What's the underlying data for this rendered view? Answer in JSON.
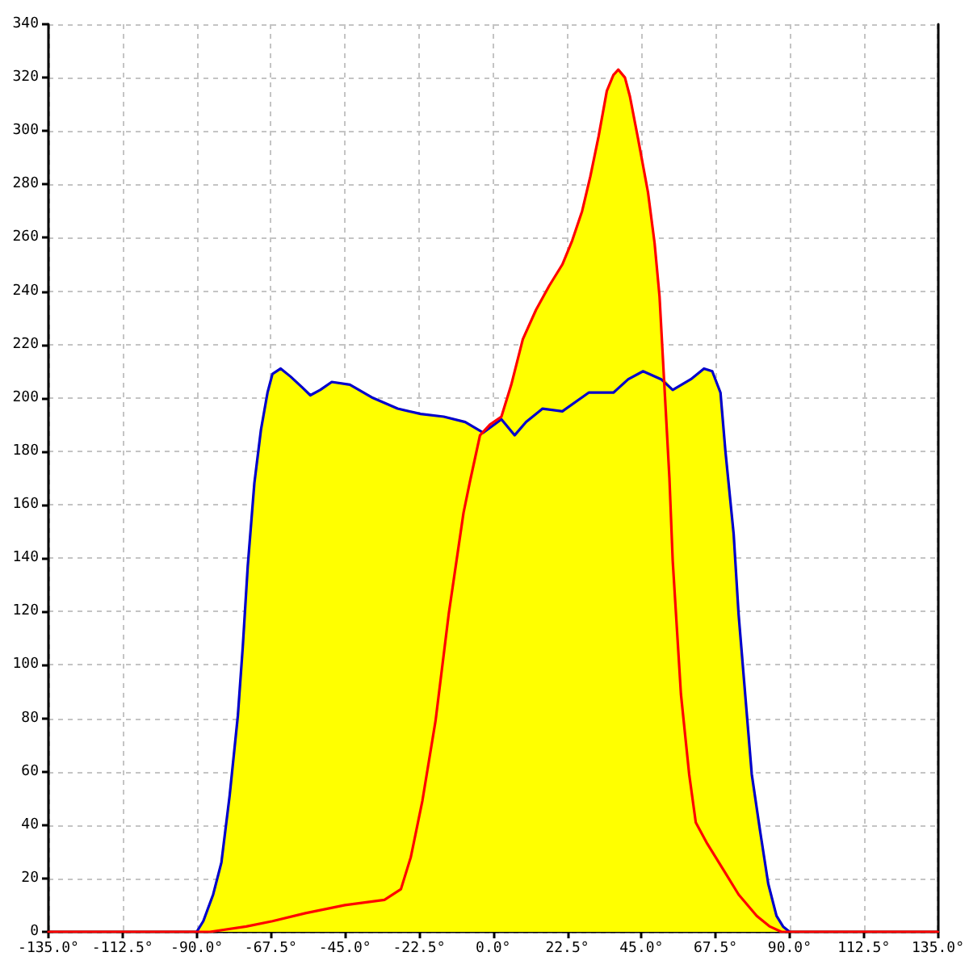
{
  "chart_data": {
    "type": "area",
    "grid": true,
    "marker": "none",
    "xlim": [
      -135,
      135
    ],
    "xticks": [
      {
        "value": -135,
        "label": "-135.0°"
      },
      {
        "value": -112.5,
        "label": "-112.5°"
      },
      {
        "value": -90,
        "label": "-90.0°"
      },
      {
        "value": -67.5,
        "label": "-67.5°"
      },
      {
        "value": -45,
        "label": "-45.0°"
      },
      {
        "value": -22.5,
        "label": "-22.5°"
      },
      {
        "value": 0,
        "label": "0.0°"
      },
      {
        "value": 22.5,
        "label": "22.5°"
      },
      {
        "value": 45,
        "label": "45.0°"
      },
      {
        "value": 67.5,
        "label": "67.5°"
      },
      {
        "value": 90,
        "label": "90.0°"
      },
      {
        "value": 112.5,
        "label": "112.5°"
      },
      {
        "value": 135,
        "label": "135.0°"
      }
    ],
    "ylim": [
      0,
      340
    ],
    "yticks": [
      0,
      20,
      40,
      60,
      80,
      100,
      120,
      140,
      160,
      180,
      200,
      220,
      240,
      260,
      280,
      300,
      320,
      340
    ],
    "series": [
      {
        "color": "#ffff00",
        "x": [
          -90,
          -88,
          -85,
          -82.5,
          -80,
          -77.5,
          -76,
          -74.5,
          -72.5,
          -70.5,
          -68.5,
          -67,
          -64.5,
          -61.5,
          -58,
          -55.5,
          -52.5,
          -49,
          -43.5,
          -36.5,
          -29,
          -22,
          -15,
          -8.5,
          -3,
          -1,
          2.5,
          5.5,
          9,
          13,
          17,
          21,
          24,
          27,
          29.5,
          32,
          34.5,
          36.5,
          38,
          40,
          41.5,
          44,
          47,
          49,
          50.5,
          51.8,
          54.5,
          60,
          64,
          66.5,
          69,
          70.5,
          73,
          74.5,
          76.5,
          78.5,
          81,
          83.5,
          86,
          88,
          90
        ],
        "values": [
          0,
          4,
          14,
          26,
          51,
          81,
          107,
          137,
          168,
          188,
          202,
          209,
          211,
          208,
          204,
          201,
          203,
          206,
          205,
          200,
          196,
          194,
          193,
          191,
          187,
          190,
          193,
          205,
          222,
          233,
          242,
          250,
          259,
          270,
          283,
          298,
          315,
          321,
          323,
          320,
          313,
          297,
          277,
          258,
          238,
          207,
          203,
          207,
          211,
          210,
          202,
          180,
          149,
          119,
          89,
          59,
          38,
          18,
          6,
          2,
          0
        ]
      },
      {
        "type": "line",
        "color": "#0000cc",
        "x": [
          -90,
          -88,
          -85,
          -82.5,
          -80,
          -77.5,
          -76,
          -74.5,
          -72.5,
          -70.5,
          -68.5,
          -67,
          -64.5,
          -61.5,
          -58,
          -55.5,
          -52.5,
          -49,
          -43.5,
          -36.5,
          -29,
          -22,
          -15,
          -8.5,
          -3,
          2.5,
          6.5,
          10,
          15,
          21,
          29,
          36.5,
          41,
          45.5,
          51,
          54.5,
          60,
          64,
          66.5,
          69,
          70.5,
          73,
          74.5,
          76.5,
          78.5,
          81,
          83.5,
          86,
          88,
          90
        ],
        "values": [
          0,
          4,
          14,
          26,
          51,
          81,
          107,
          137,
          168,
          188,
          202,
          209,
          211,
          208,
          204,
          201,
          203,
          206,
          205,
          200,
          196,
          194,
          193,
          191,
          187,
          192,
          186,
          191,
          196,
          195,
          202,
          202,
          207,
          210,
          207,
          203,
          207,
          211,
          210,
          202,
          180,
          149,
          119,
          89,
          59,
          38,
          18,
          6,
          2,
          0
        ]
      },
      {
        "type": "line",
        "color": "#ff0000",
        "x": [
          -135,
          -86,
          -75,
          -67,
          -57,
          -45,
          -33,
          -28,
          -25,
          -21.5,
          -17.5,
          -13.5,
          -9,
          -7,
          -4,
          -1,
          2.5,
          5.5,
          9,
          13,
          17,
          21,
          24,
          27,
          29.5,
          32,
          34.5,
          36.5,
          38,
          40,
          41.5,
          44,
          47,
          49,
          50.5,
          52,
          53.5,
          54.5,
          57,
          59.5,
          61.5,
          65,
          70,
          74.5,
          80,
          84,
          87.5,
          135
        ],
        "values": [
          0,
          0,
          2,
          4,
          7,
          10,
          12,
          16,
          28,
          49,
          79,
          119,
          157,
          169,
          186,
          190,
          193,
          205,
          222,
          233,
          242,
          250,
          259,
          270,
          283,
          298,
          315,
          321,
          323,
          320,
          313,
          297,
          277,
          258,
          238,
          204,
          170,
          139,
          89,
          59,
          41,
          33,
          23,
          14,
          6,
          2,
          0,
          0
        ]
      }
    ]
  }
}
